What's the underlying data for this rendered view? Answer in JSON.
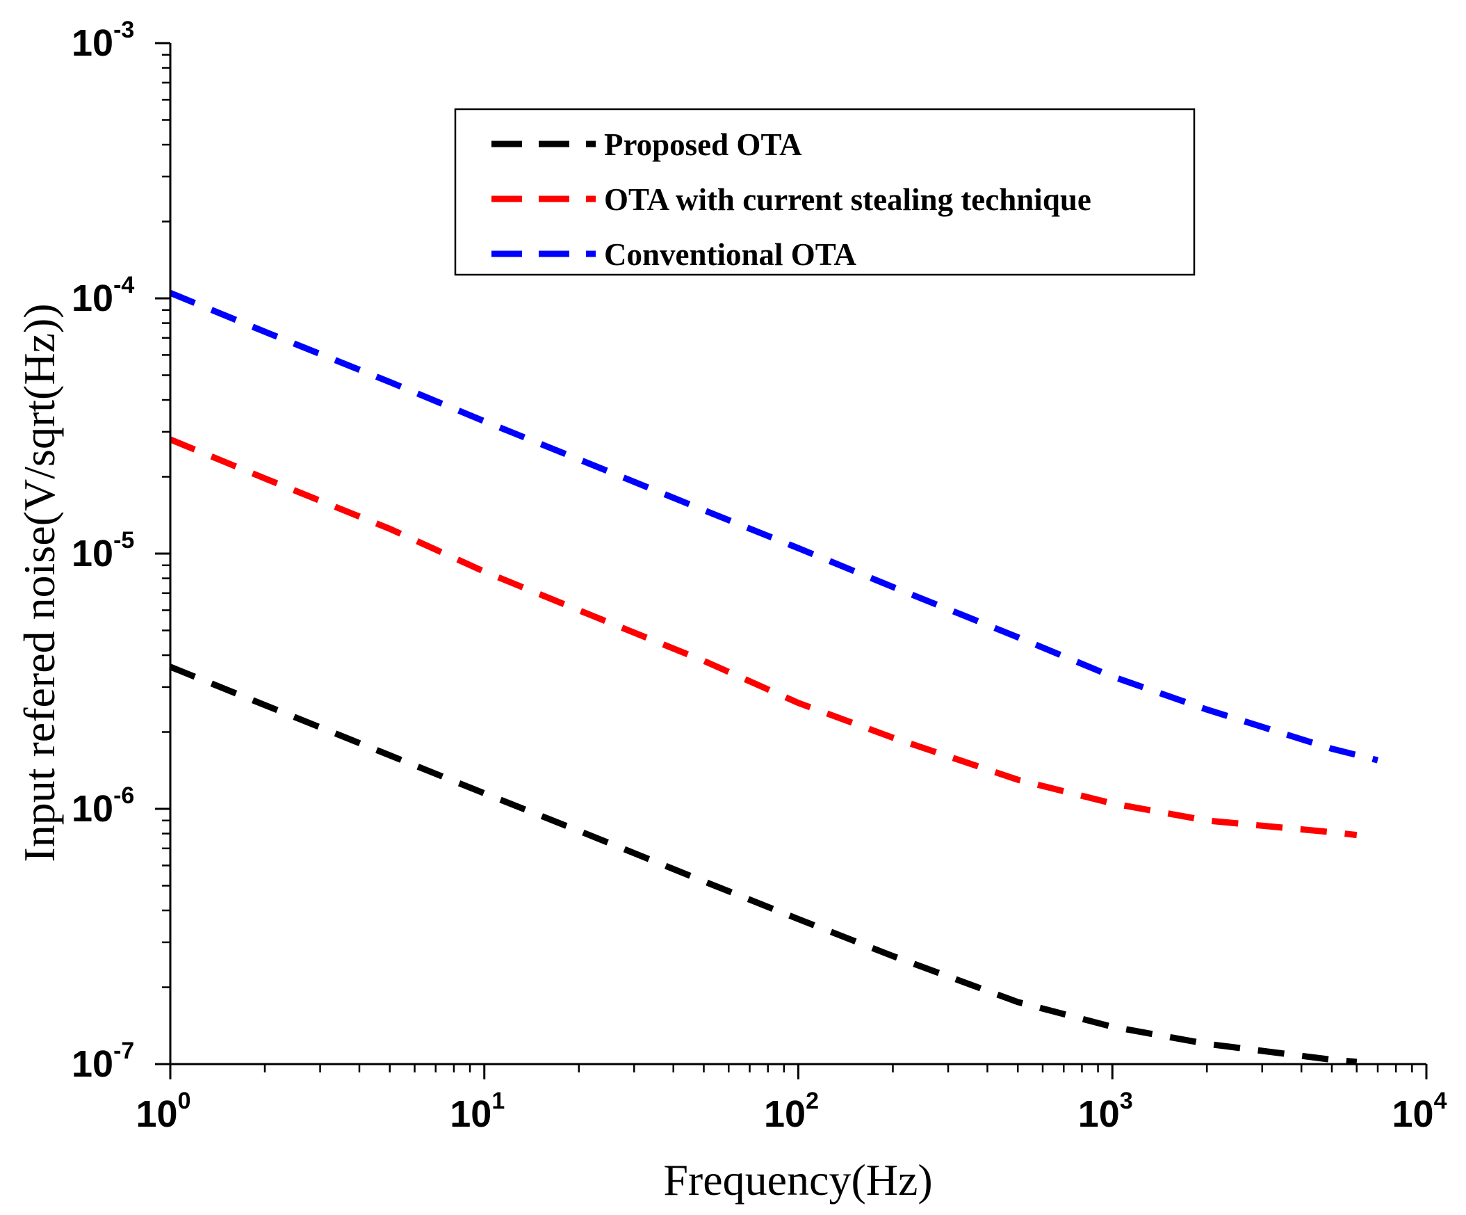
{
  "chart_data": {
    "type": "line",
    "title": "",
    "xlabel": "Frequency(Hz)",
    "ylabel": "Input refered noise(V/sqrt(Hz))",
    "xscale": "log",
    "yscale": "log",
    "xlim": [
      1,
      10000
    ],
    "ylim": [
      1e-07,
      0.001
    ],
    "grid": false,
    "legend_position": "top-center",
    "x_ticks": [
      {
        "base": "10",
        "exp": "0"
      },
      {
        "base": "10",
        "exp": "1"
      },
      {
        "base": "10",
        "exp": "2"
      },
      {
        "base": "10",
        "exp": "3"
      },
      {
        "base": "10",
        "exp": "4"
      }
    ],
    "y_ticks": [
      {
        "base": "10",
        "exp": "-7"
      },
      {
        "base": "10",
        "exp": "-6"
      },
      {
        "base": "10",
        "exp": "-5"
      },
      {
        "base": "10",
        "exp": "-4"
      },
      {
        "base": "10",
        "exp": "-3"
      }
    ],
    "series": [
      {
        "name": "Proposed OTA",
        "color": "#000000",
        "style": "dashed",
        "x": [
          1,
          2,
          5,
          10,
          20,
          50,
          100,
          200,
          500,
          1000,
          2000,
          5000,
          6000
        ],
        "y": [
          3.6e-06,
          2.55e-06,
          1.62e-06,
          1.15e-06,
          8.2e-07,
          5.2e-07,
          3.7e-07,
          2.65e-07,
          1.75e-07,
          1.4e-07,
          1.2e-07,
          1.04e-07,
          1.02e-07
        ]
      },
      {
        "name": "OTA with current stealing technique",
        "color": "#ff0000",
        "style": "dashed",
        "x": [
          1,
          2,
          5,
          10,
          20,
          50,
          100,
          200,
          500,
          1000,
          2000,
          5000,
          6000
        ],
        "y": [
          2.8e-05,
          1.97e-05,
          1.25e-05,
          8.5e-06,
          6e-06,
          3.8e-06,
          2.6e-06,
          1.9e-06,
          1.3e-06,
          1.05e-06,
          9e-07,
          8.1e-07,
          7.9e-07
        ]
      },
      {
        "name": "Conventional OTA",
        "color": "#0000ff",
        "style": "dashed",
        "x": [
          1,
          2,
          5,
          10,
          20,
          50,
          100,
          200,
          500,
          1000,
          2000,
          5000,
          7000
        ],
        "y": [
          0.000105,
          7.4e-05,
          4.7e-05,
          3.3e-05,
          2.34e-05,
          1.48e-05,
          1.05e-05,
          7.4e-06,
          4.7e-06,
          3.3e-06,
          2.45e-06,
          1.72e-06,
          1.55e-06
        ]
      }
    ]
  }
}
